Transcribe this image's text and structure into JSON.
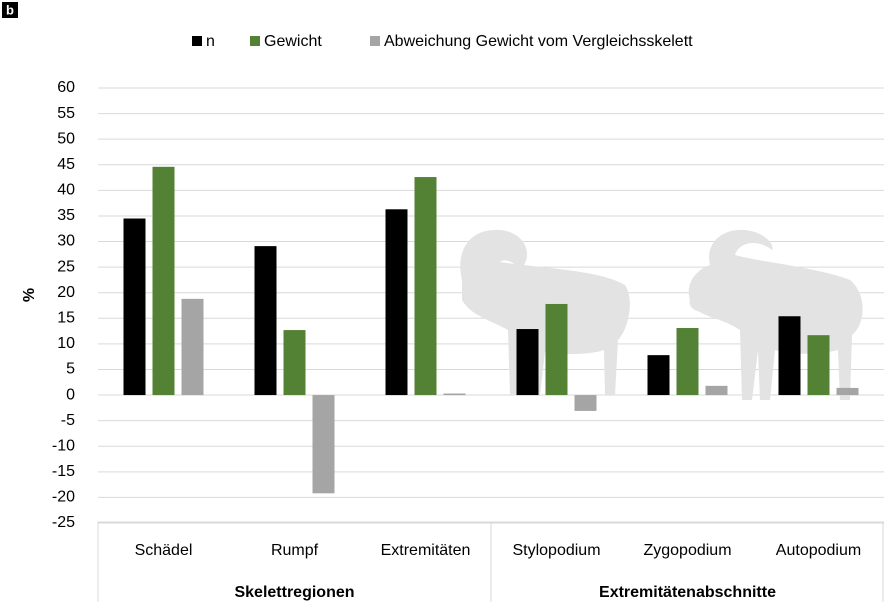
{
  "chart_data": {
    "type": "bar",
    "panel_label": "b",
    "ylabel": "%",
    "groups": [
      {
        "name": "Skelettregionen",
        "categories": [
          "Schädel",
          "Rumpf",
          "Extremitäten"
        ]
      },
      {
        "name": "Extremitätenabschnitte",
        "categories": [
          "Stylopodium",
          "Zygopodium",
          "Autopodium"
        ]
      }
    ],
    "series": [
      {
        "name": "n",
        "color": "#000000",
        "values": [
          34.5,
          29.1,
          36.3,
          12.9,
          7.8,
          15.4
        ]
      },
      {
        "name": "Gewicht",
        "color": "#548235",
        "values": [
          44.6,
          12.7,
          42.6,
          17.8,
          13.1,
          11.7
        ]
      },
      {
        "name": "Abweichung Gewicht vom Vergleichsskelett",
        "color": "#a5a5a5",
        "values": [
          18.8,
          -19.2,
          0.3,
          -3.1,
          1.8,
          1.4
        ]
      }
    ],
    "ylim": [
      -25,
      60
    ],
    "yticks": [
      -25,
      -20,
      -15,
      -10,
      -5,
      0,
      5,
      10,
      15,
      20,
      25,
      30,
      35,
      40,
      45,
      50,
      55,
      60
    ],
    "grid": true,
    "legend": "top"
  }
}
